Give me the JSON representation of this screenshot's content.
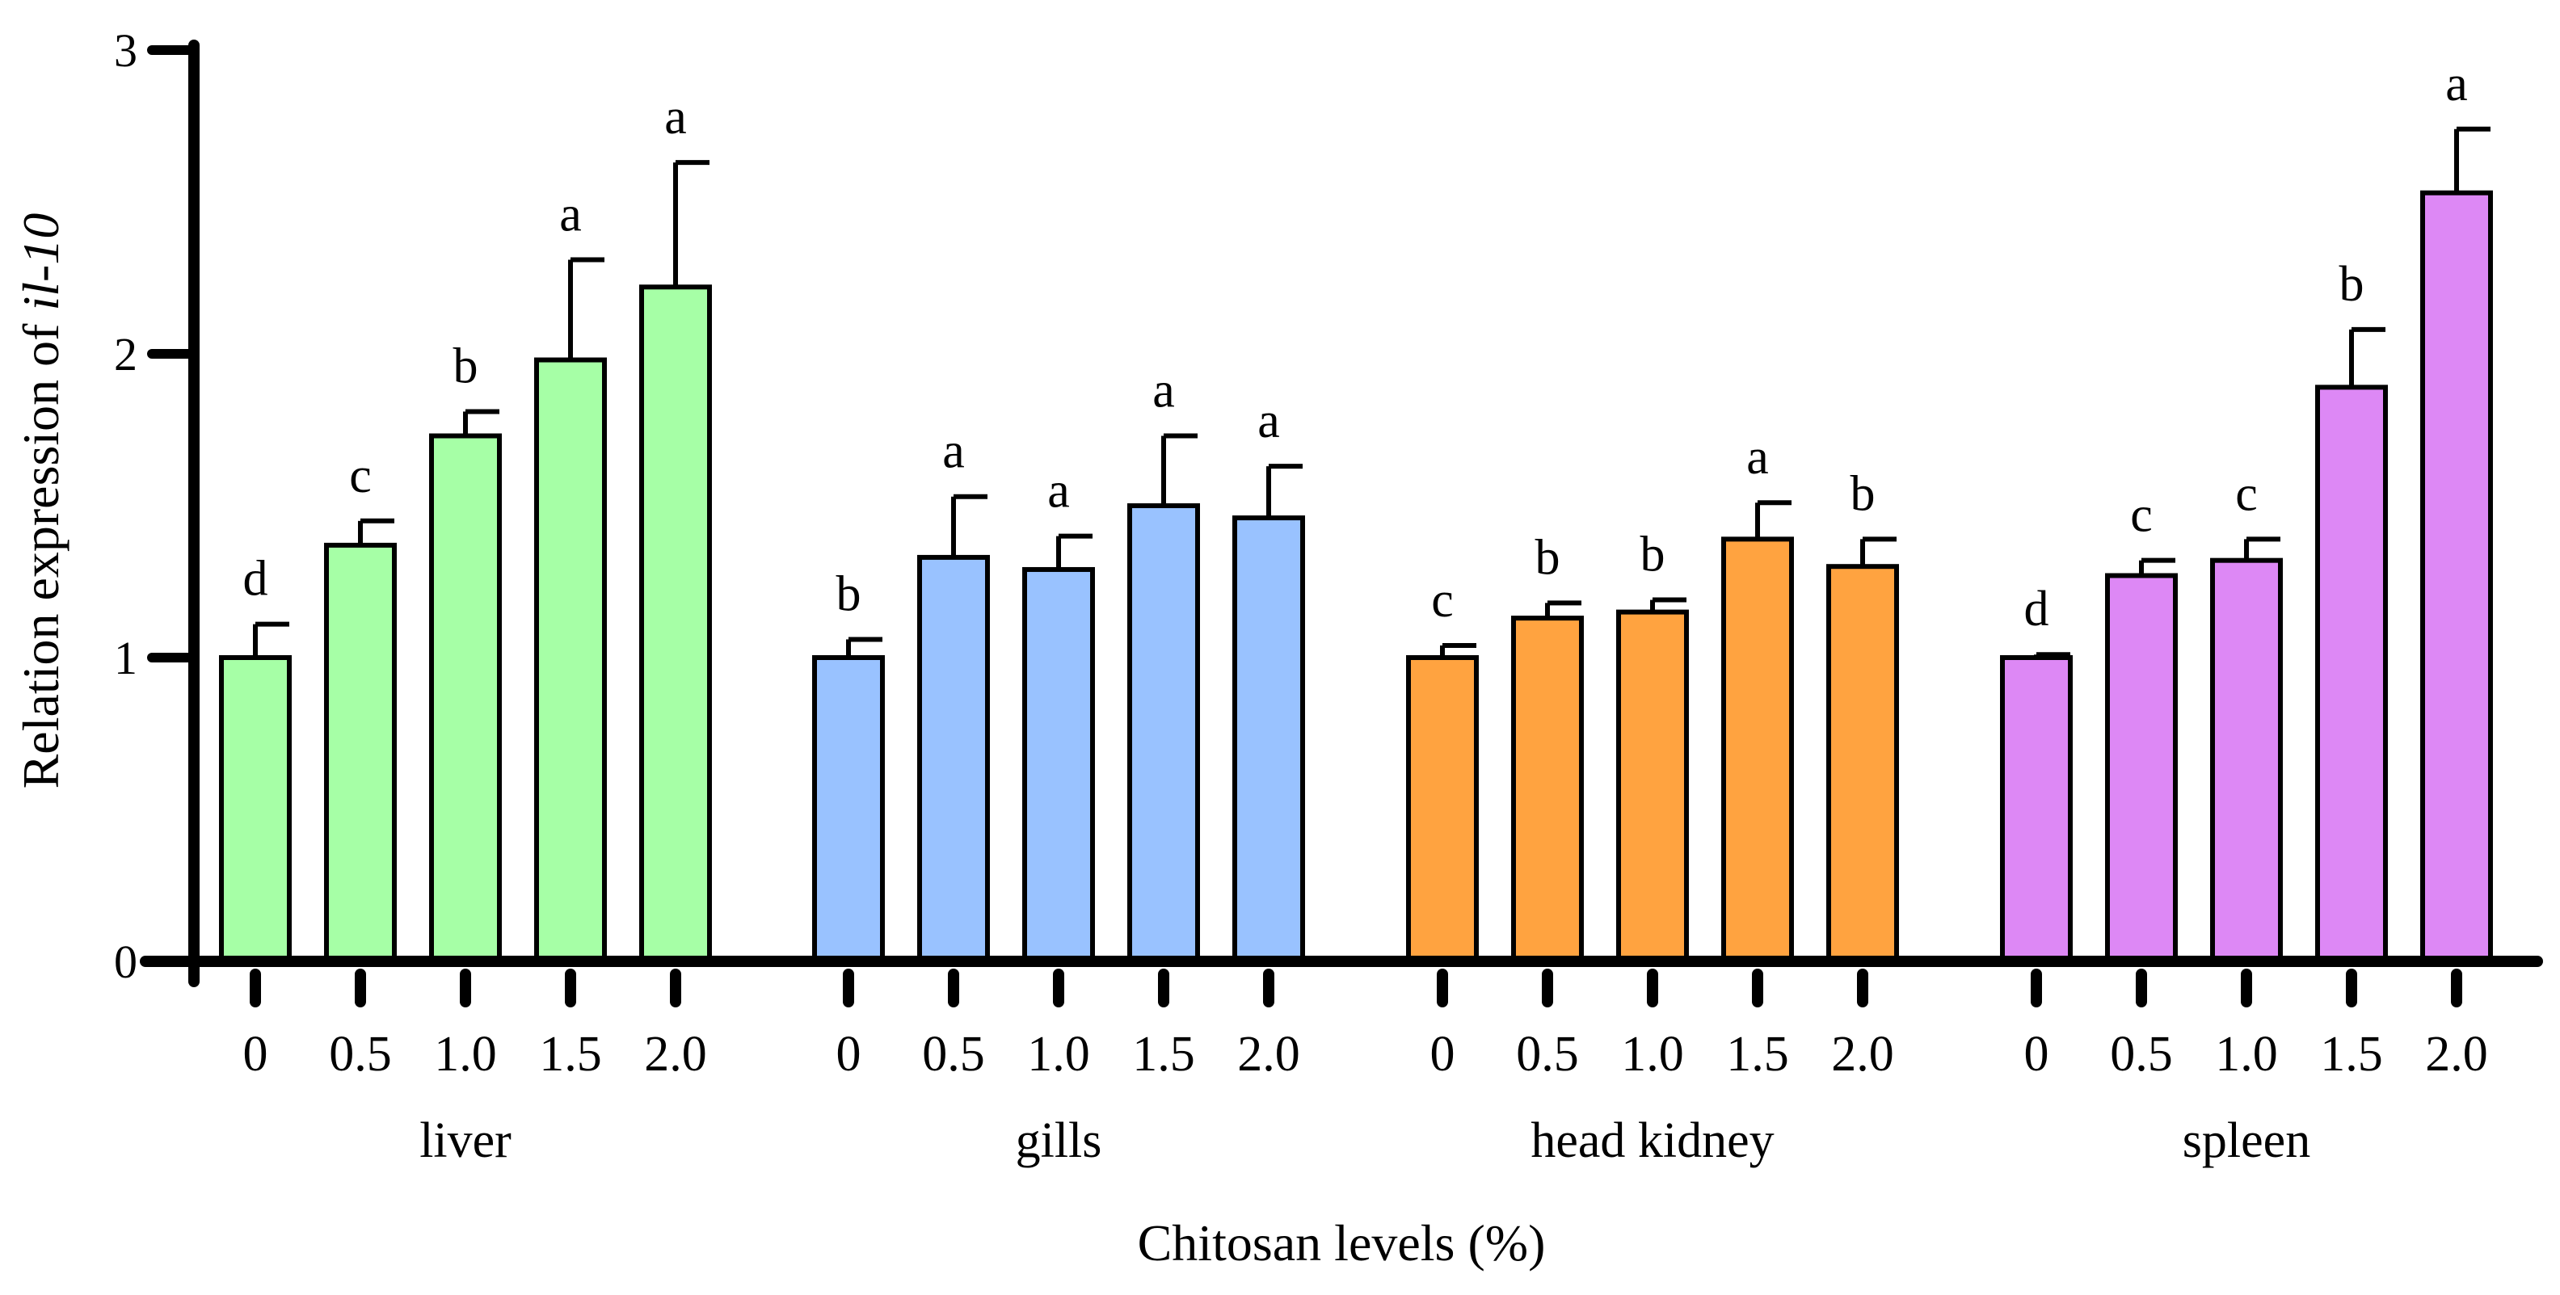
{
  "chart_data": {
    "type": "bar",
    "ylabel_prefix": "Relation expression of ",
    "ylabel_gene": "il-10",
    "xlabel": "Chitosan  levels  (%)",
    "ylim": [
      0,
      3
    ],
    "yticks": [
      "0",
      "1",
      "2",
      "3"
    ],
    "categories": [
      "0",
      "0.5",
      "1.0",
      "1.5",
      "2.0"
    ],
    "groups": [
      {
        "name": "liver",
        "color": "#A6FFA6",
        "values": [
          1.0,
          1.37,
          1.73,
          1.98,
          2.22
        ],
        "errors": [
          0.11,
          0.08,
          0.08,
          0.33,
          0.41
        ],
        "letters": [
          "d",
          "c",
          "b",
          "a",
          "a"
        ]
      },
      {
        "name": "gills",
        "color": "#99C2FF",
        "values": [
          1.0,
          1.33,
          1.29,
          1.5,
          1.46
        ],
        "errors": [
          0.06,
          0.2,
          0.11,
          0.23,
          0.17
        ],
        "letters": [
          "b",
          "a",
          "a",
          "a",
          "a"
        ]
      },
      {
        "name": "head kidney",
        "color": "#FFA340",
        "values": [
          1.0,
          1.13,
          1.15,
          1.39,
          1.3
        ],
        "errors": [
          0.04,
          0.05,
          0.04,
          0.12,
          0.09
        ],
        "letters": [
          "c",
          "b",
          "b",
          "a",
          "b"
        ]
      },
      {
        "name": "spleen",
        "color": "#DD88F5",
        "values": [
          1.0,
          1.27,
          1.32,
          1.89,
          2.53
        ],
        "errors": [
          0.01,
          0.05,
          0.07,
          0.19,
          0.21
        ],
        "letters": [
          "d",
          "c",
          "c",
          "b",
          "a"
        ]
      }
    ]
  }
}
